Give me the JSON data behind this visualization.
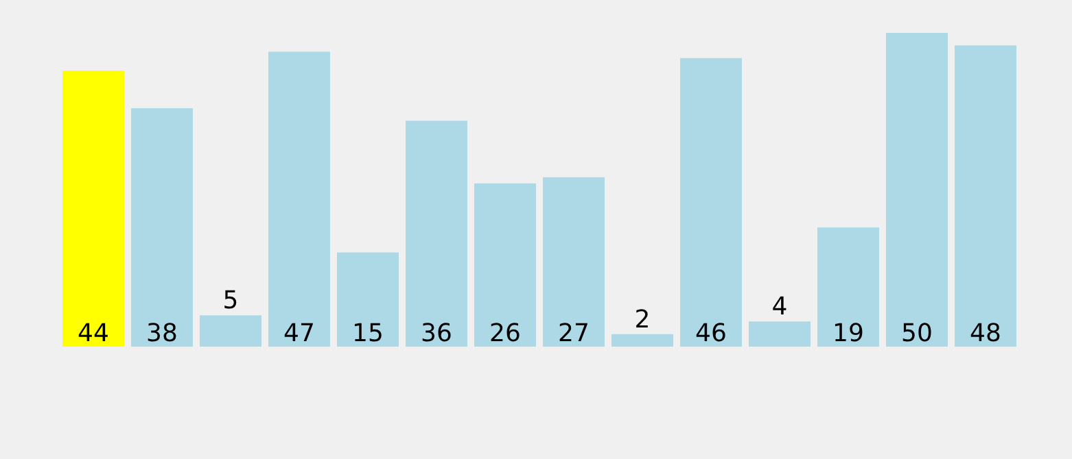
{
  "chart_data": {
    "type": "bar",
    "categories": [
      null,
      null,
      null,
      null,
      null,
      null,
      null,
      null,
      null,
      null,
      null,
      null,
      null,
      null
    ],
    "values": [
      44,
      38,
      5,
      47,
      15,
      36,
      26,
      27,
      2,
      46,
      4,
      19,
      50,
      48
    ],
    "colors": [
      "#ffff00",
      "#add8e6",
      "#add8e6",
      "#add8e6",
      "#add8e6",
      "#add8e6",
      "#add8e6",
      "#add8e6",
      "#add8e6",
      "#add8e6",
      "#add8e6",
      "#add8e6",
      "#add8e6",
      "#add8e6"
    ],
    "data_labels": true
  }
}
